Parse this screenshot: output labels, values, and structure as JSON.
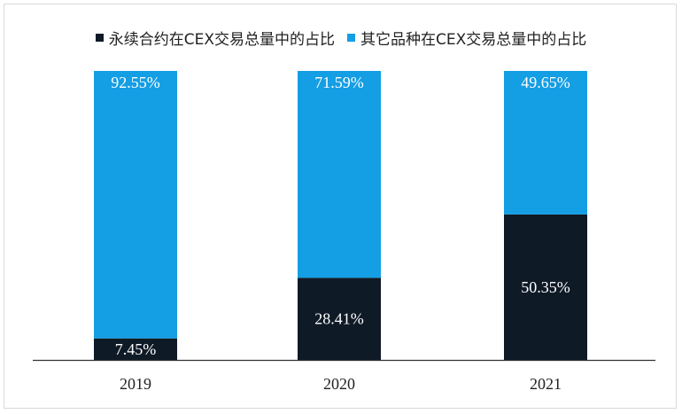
{
  "chart_data": {
    "type": "bar",
    "stacked": true,
    "categories": [
      "2019",
      "2020",
      "2021"
    ],
    "series": [
      {
        "name": "永续合约在CEX交易总量中的占比",
        "values": [
          7.45,
          28.41,
          50.35
        ],
        "labels": [
          "7.45%",
          "28.41%",
          "50.35%"
        ],
        "color": "#0f1a27"
      },
      {
        "name": "其它品种在CEX交易总量中的占比",
        "values": [
          92.55,
          71.59,
          49.65
        ],
        "labels": [
          "92.55%",
          "71.59%",
          "49.65%"
        ],
        "color": "#149ee4"
      }
    ],
    "ylim": [
      0,
      100
    ],
    "legend_position": "top",
    "grid": false
  }
}
